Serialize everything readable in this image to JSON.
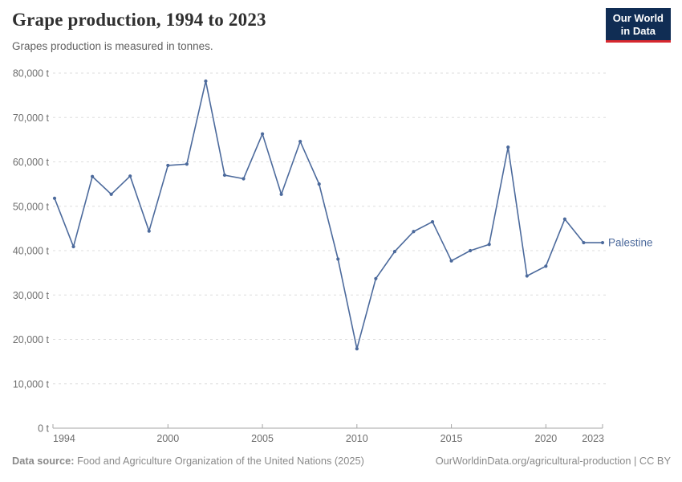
{
  "header": {
    "title": "Grape production, 1994 to 2023",
    "subtitle": "Grapes production is measured in tonnes.",
    "logo_line1": "Our World",
    "logo_line2": "in Data"
  },
  "colors": {
    "line": "#4C6A9C",
    "logo_background": "#102d54",
    "logo_red_bar": "#d7282f",
    "gridline": "#dedede",
    "axis": "#a5a5a5",
    "tick_label": "#6e6e6e"
  },
  "chart_data": {
    "type": "line",
    "title": "Grape production, 1994 to 2023",
    "ylabel": "",
    "xlabel": "",
    "unit": "t",
    "grid": "horizontal dashed",
    "legend_position": "end-of-line label",
    "xlim": [
      1994,
      2023
    ],
    "ylim": [
      0,
      80000
    ],
    "series": [
      {
        "name": "Palestine",
        "x": [
          1994,
          1995,
          1996,
          1997,
          1998,
          1999,
          2000,
          2001,
          2002,
          2003,
          2004,
          2005,
          2006,
          2007,
          2008,
          2009,
          2010,
          2011,
          2012,
          2013,
          2014,
          2015,
          2016,
          2017,
          2018,
          2019,
          2020,
          2021,
          2022,
          2023
        ],
        "values": [
          51800,
          40900,
          56700,
          52700,
          56800,
          44400,
          59200,
          59500,
          78200,
          57000,
          56200,
          66300,
          52700,
          64600,
          55000,
          38100,
          17900,
          33700,
          39800,
          44300,
          46500,
          37700,
          40000,
          41400,
          63300,
          34300,
          36500,
          47100,
          41800,
          41800
        ]
      }
    ],
    "entity_label": "Palestine",
    "y_ticks": [
      {
        "value": 0,
        "label": "0 t"
      },
      {
        "value": 10000,
        "label": "10,000 t"
      },
      {
        "value": 20000,
        "label": "20,000 t"
      },
      {
        "value": 30000,
        "label": "30,000 t"
      },
      {
        "value": 40000,
        "label": "40,000 t"
      },
      {
        "value": 50000,
        "label": "50,000 t"
      },
      {
        "value": 60000,
        "label": "60,000 t"
      },
      {
        "value": 70000,
        "label": "70,000 t"
      },
      {
        "value": 80000,
        "label": "80,000 t"
      }
    ],
    "x_ticks": [
      {
        "value": 1994,
        "label": "1994"
      },
      {
        "value": 2000,
        "label": "2000"
      },
      {
        "value": 2005,
        "label": "2005"
      },
      {
        "value": 2010,
        "label": "2010"
      },
      {
        "value": 2015,
        "label": "2015"
      },
      {
        "value": 2020,
        "label": "2020"
      },
      {
        "value": 2023,
        "label": "2023"
      }
    ]
  },
  "footer": {
    "source_label": "Data source:",
    "source_text": " Food and Agriculture Organization of the United Nations (2025)",
    "link_text": "OurWorldinData.org/agricultural-production | CC BY"
  }
}
